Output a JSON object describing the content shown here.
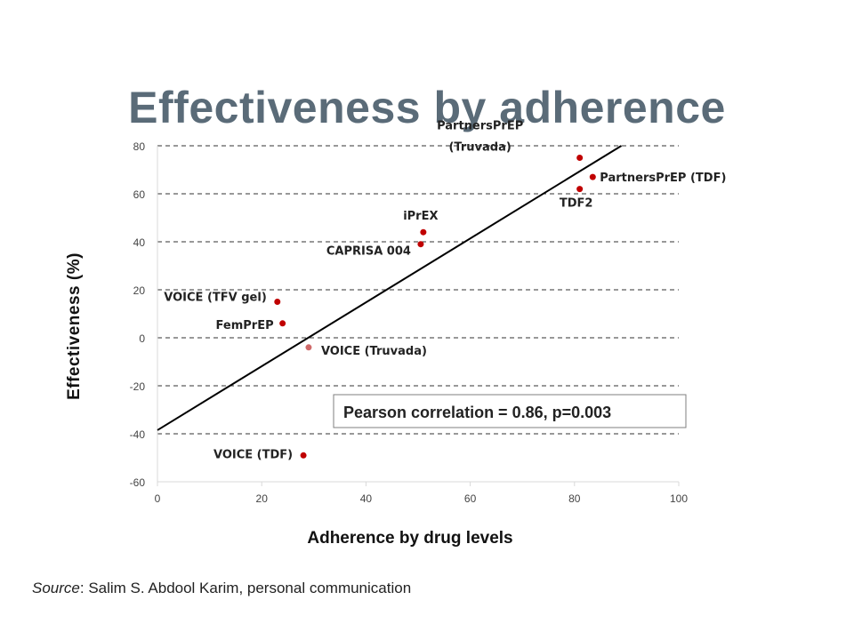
{
  "slide": {
    "title": "Effectiveness by adherence",
    "source_label": "Source",
    "source_text": ": Salim S. Abdool Karim, personal communication"
  },
  "chart_data": {
    "type": "scatter",
    "title": "",
    "xlabel": "Adherence by drug levels",
    "ylabel": "Effectiveness (%)",
    "xlim": [
      0,
      100
    ],
    "ylim": [
      -60,
      80
    ],
    "x_ticks": [
      "0",
      "20",
      "40",
      "60",
      "80",
      "100"
    ],
    "y_ticks": [
      "80",
      "60",
      "40",
      "20",
      "0",
      "-20",
      "-40",
      "-60"
    ],
    "grid": "horizontal dashed",
    "points": [
      {
        "label": "PartnersPrEP (Truvada)",
        "x": 81,
        "y": 75,
        "color": "#c00000"
      },
      {
        "label": "PartnersPrEP (TDF)",
        "x": 83.5,
        "y": 67,
        "color": "#c00000"
      },
      {
        "label": "TDF2",
        "x": 81,
        "y": 62,
        "color": "#c00000"
      },
      {
        "label": "iPrEX",
        "x": 51,
        "y": 44,
        "color": "#c00000"
      },
      {
        "label": "CAPRISA 004",
        "x": 50.5,
        "y": 39,
        "color": "#c00000"
      },
      {
        "label": "VOICE (TFV gel)",
        "x": 23,
        "y": 15,
        "color": "#c00000"
      },
      {
        "label": "FemPrEP",
        "x": 24,
        "y": 6,
        "color": "#c00000"
      },
      {
        "label": "VOICE (Truvada)",
        "x": 29,
        "y": -4,
        "color": "#d06a6a"
      },
      {
        "label": "VOICE (TDF)",
        "x": 28,
        "y": -49,
        "color": "#c00000"
      }
    ],
    "trendline": {
      "x": [
        0,
        89
      ],
      "y": [
        -38.5,
        80
      ],
      "color": "#000000"
    },
    "annotation": "Pearson correlation = 0.86, p=0.003"
  }
}
